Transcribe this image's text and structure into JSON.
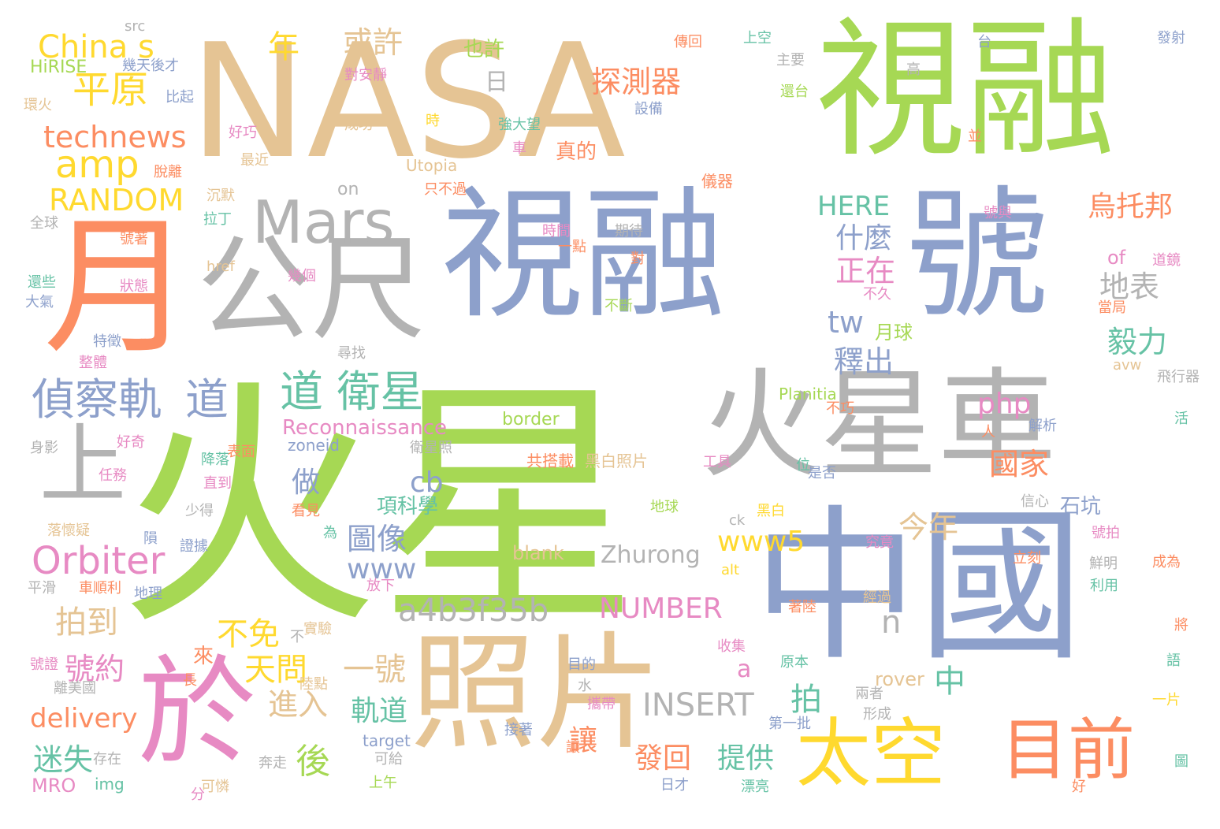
{
  "palette": {
    "green": "#a6d854",
    "blue": "#8da0cb",
    "gray": "#b3b3b3",
    "tan": "#e5c494",
    "orange": "#fc8d62",
    "pink": "#e78ac3",
    "yellow": "#ffd92f",
    "teal": "#66c2a5"
  },
  "words": [
    {
      "text": "火星",
      "color": "green"
    },
    {
      "text": "NASA",
      "color": "tan"
    },
    {
      "text": "視融",
      "color": "green"
    },
    {
      "text": "視融",
      "color": "blue"
    },
    {
      "text": "號",
      "color": "blue"
    },
    {
      "text": "中國",
      "color": "blue"
    },
    {
      "text": "火星車",
      "color": "gray"
    },
    {
      "text": "照片",
      "color": "tan"
    },
    {
      "text": "月",
      "color": "orange"
    },
    {
      "text": "公尺",
      "color": "gray"
    },
    {
      "text": "於",
      "color": "pink"
    },
    {
      "text": "Mars",
      "color": "gray"
    },
    {
      "text": "太空",
      "color": "yellow"
    },
    {
      "text": "目前",
      "color": "orange"
    },
    {
      "text": "上",
      "color": "gray"
    },
    {
      "text": "偵察軌",
      "color": "blue"
    },
    {
      "text": "道",
      "color": "blue"
    },
    {
      "text": "道 衛星",
      "color": "teal"
    },
    {
      "text": "Orbiter",
      "color": "pink"
    },
    {
      "text": "China s",
      "color": "yellow"
    },
    {
      "text": "平原",
      "color": "yellow"
    },
    {
      "text": "technews",
      "color": "orange"
    },
    {
      "text": "amp",
      "color": "yellow"
    },
    {
      "text": "RANDOM",
      "color": "yellow"
    },
    {
      "text": "年",
      "color": "yellow"
    },
    {
      "text": "或許",
      "color": "tan"
    },
    {
      "text": "也許",
      "color": "green"
    },
    {
      "text": "探測器",
      "color": "orange"
    },
    {
      "text": "日",
      "color": "gray"
    },
    {
      "text": "真的",
      "color": "orange"
    },
    {
      "text": "烏托邦",
      "color": "orange"
    },
    {
      "text": "HERE",
      "color": "teal"
    },
    {
      "text": "什麼",
      "color": "blue"
    },
    {
      "text": "正在",
      "color": "pink"
    },
    {
      "text": "地表",
      "color": "gray"
    },
    {
      "text": "毅力",
      "color": "teal"
    },
    {
      "text": "tw",
      "color": "blue"
    },
    {
      "text": "釋出",
      "color": "blue"
    },
    {
      "text": "月球",
      "color": "green"
    },
    {
      "text": "php",
      "color": "pink"
    },
    {
      "text": "國家",
      "color": "orange"
    },
    {
      "text": "Reconnaissance",
      "color": "pink"
    },
    {
      "text": "cb",
      "color": "blue"
    },
    {
      "text": "做",
      "color": "blue"
    },
    {
      "text": "項科學",
      "color": "teal"
    },
    {
      "text": "石坑",
      "color": "blue"
    },
    {
      "text": "圖像",
      "color": "blue"
    },
    {
      "text": "www5",
      "color": "yellow"
    },
    {
      "text": "今年",
      "color": "tan"
    },
    {
      "text": "www",
      "color": "blue"
    },
    {
      "text": "a4b3f35b",
      "color": "gray"
    },
    {
      "text": "拍到",
      "color": "tan"
    },
    {
      "text": "NUMBER",
      "color": "pink"
    },
    {
      "text": "n",
      "color": "gray"
    },
    {
      "text": "不免",
      "color": "yellow"
    },
    {
      "text": "天問",
      "color": "yellow"
    },
    {
      "text": "一號",
      "color": "tan"
    },
    {
      "text": "號約",
      "color": "pink"
    },
    {
      "text": "a",
      "color": "pink"
    },
    {
      "text": "中",
      "color": "teal"
    },
    {
      "text": "拍",
      "color": "teal"
    },
    {
      "text": "進入",
      "color": "tan"
    },
    {
      "text": "軌道",
      "color": "teal"
    },
    {
      "text": "INSERT",
      "color": "gray"
    },
    {
      "text": "delivery",
      "color": "orange"
    },
    {
      "text": "後",
      "color": "green"
    },
    {
      "text": "迷失",
      "color": "teal"
    },
    {
      "text": "發回",
      "color": "orange"
    },
    {
      "text": "提供",
      "color": "teal"
    },
    {
      "text": "讓",
      "color": "orange"
    },
    {
      "text": "rover",
      "color": "tan"
    },
    {
      "text": "Zhurong",
      "color": "gray"
    },
    {
      "text": "blank",
      "color": "tan"
    },
    {
      "text": "border",
      "color": "green"
    },
    {
      "text": "Planitia",
      "color": "green"
    },
    {
      "text": "Utopia",
      "color": "tan"
    },
    {
      "text": "HiRISE",
      "color": "green"
    },
    {
      "text": "src",
      "color": "gray"
    },
    {
      "text": "href",
      "color": "tan"
    },
    {
      "text": "of",
      "color": "pink"
    },
    {
      "text": "on",
      "color": "gray"
    },
    {
      "text": "zoneid",
      "color": "blue"
    },
    {
      "text": "target",
      "color": "blue"
    },
    {
      "text": "MRO",
      "color": "pink"
    },
    {
      "text": "img",
      "color": "teal"
    },
    {
      "text": "alt",
      "color": "yellow"
    },
    {
      "text": "avw",
      "color": "tan"
    },
    {
      "text": "ck",
      "color": "gray"
    },
    {
      "text": "黑白照片",
      "color": "tan"
    },
    {
      "text": "共搭載",
      "color": "orange"
    },
    {
      "text": "衛星照",
      "color": "gray"
    },
    {
      "text": "幾天後才",
      "color": "blue"
    },
    {
      "text": "比起",
      "color": "blue"
    },
    {
      "text": "環火",
      "color": "tan"
    },
    {
      "text": "對安靜",
      "color": "pink"
    },
    {
      "text": "成功",
      "color": "tan"
    },
    {
      "text": "強大望",
      "color": "teal"
    },
    {
      "text": "設備",
      "color": "blue"
    },
    {
      "text": "儀器",
      "color": "orange"
    },
    {
      "text": "只不過",
      "color": "orange"
    },
    {
      "text": "傳回",
      "color": "orange"
    },
    {
      "text": "上空",
      "color": "teal"
    },
    {
      "text": "主要",
      "color": "gray"
    },
    {
      "text": "還台",
      "color": "green"
    },
    {
      "text": "發射",
      "color": "blue"
    },
    {
      "text": "時間",
      "color": "pink"
    },
    {
      "text": "一點",
      "color": "orange"
    },
    {
      "text": "期待",
      "color": "gray"
    },
    {
      "text": "拉丁",
      "color": "teal"
    },
    {
      "text": "沉默",
      "color": "tan"
    },
    {
      "text": "號著",
      "color": "orange"
    },
    {
      "text": "全球",
      "color": "gray"
    },
    {
      "text": "狀態",
      "color": "pink"
    },
    {
      "text": "還些",
      "color": "teal"
    },
    {
      "text": "大氣",
      "color": "blue"
    },
    {
      "text": "特徵",
      "color": "blue"
    },
    {
      "text": "整體",
      "color": "pink"
    },
    {
      "text": "尋找",
      "color": "gray"
    },
    {
      "text": "幾個",
      "color": "pink"
    },
    {
      "text": "不斷",
      "color": "green"
    },
    {
      "text": "不久",
      "color": "pink"
    },
    {
      "text": "當局",
      "color": "orange"
    },
    {
      "text": "飛行器",
      "color": "gray"
    },
    {
      "text": "解析",
      "color": "blue"
    },
    {
      "text": "工具",
      "color": "pink"
    },
    {
      "text": "是否",
      "color": "blue"
    },
    {
      "text": "好奇",
      "color": "pink"
    },
    {
      "text": "表面",
      "color": "orange"
    },
    {
      "text": "身影",
      "color": "gray"
    },
    {
      "text": "降落",
      "color": "teal"
    },
    {
      "text": "任務",
      "color": "pink"
    },
    {
      "text": "直到",
      "color": "pink"
    },
    {
      "text": "少得",
      "color": "gray"
    },
    {
      "text": "地球",
      "color": "green"
    },
    {
      "text": "黑白",
      "color": "yellow"
    },
    {
      "text": "信心",
      "color": "gray"
    },
    {
      "text": "號拍",
      "color": "pink"
    },
    {
      "text": "究竟",
      "color": "pink"
    },
    {
      "text": "鮮明",
      "color": "gray"
    },
    {
      "text": "立刻",
      "color": "orange"
    },
    {
      "text": "成為",
      "color": "orange"
    },
    {
      "text": "利用",
      "color": "teal"
    },
    {
      "text": "經過",
      "color": "tan"
    },
    {
      "text": "著陸",
      "color": "orange"
    },
    {
      "text": "收集",
      "color": "pink"
    },
    {
      "text": "原本",
      "color": "teal"
    },
    {
      "text": "第一批",
      "color": "blue"
    },
    {
      "text": "兩者",
      "color": "gray"
    },
    {
      "text": "形成",
      "color": "gray"
    },
    {
      "text": "攜帶",
      "color": "pink"
    },
    {
      "text": "接著",
      "color": "blue"
    },
    {
      "text": "可給",
      "color": "gray"
    },
    {
      "text": "上午",
      "color": "green"
    },
    {
      "text": "奔走",
      "color": "gray"
    },
    {
      "text": "存在",
      "color": "gray"
    },
    {
      "text": "可憐",
      "color": "tan"
    },
    {
      "text": "漂亮",
      "color": "teal"
    },
    {
      "text": "日才",
      "color": "blue"
    },
    {
      "text": "地理",
      "color": "blue"
    },
    {
      "text": "平滑",
      "color": "gray"
    },
    {
      "text": "車順利",
      "color": "orange"
    },
    {
      "text": "證據",
      "color": "blue"
    },
    {
      "text": "落懷疑",
      "color": "tan"
    },
    {
      "text": "放下",
      "color": "pink"
    },
    {
      "text": "實驗",
      "color": "tan"
    },
    {
      "text": "號證",
      "color": "pink"
    },
    {
      "text": "陸點",
      "color": "tan"
    },
    {
      "text": "目的",
      "color": "blue"
    },
    {
      "text": "離美國",
      "color": "gray"
    },
    {
      "text": "好巧",
      "color": "pink"
    },
    {
      "text": "最近",
      "color": "tan"
    },
    {
      "text": "脫離",
      "color": "orange"
    },
    {
      "text": "看見",
      "color": "orange"
    },
    {
      "text": "為",
      "color": "teal"
    },
    {
      "text": "不",
      "color": "gray"
    },
    {
      "text": "來",
      "color": "orange"
    },
    {
      "text": "長",
      "color": "orange"
    },
    {
      "text": "水",
      "color": "gray"
    },
    {
      "text": "分",
      "color": "pink"
    },
    {
      "text": "好",
      "color": "orange"
    },
    {
      "text": "一片",
      "color": "yellow"
    },
    {
      "text": "圖",
      "color": "teal"
    },
    {
      "text": "將",
      "color": "orange"
    },
    {
      "text": "語",
      "color": "teal"
    },
    {
      "text": "人",
      "color": "orange"
    },
    {
      "text": "活",
      "color": "teal"
    },
    {
      "text": "位",
      "color": "teal"
    },
    {
      "text": "並",
      "color": "orange"
    },
    {
      "text": "台",
      "color": "blue"
    },
    {
      "text": "高",
      "color": "gray"
    },
    {
      "text": "時",
      "color": "yellow"
    },
    {
      "text": "車",
      "color": "pink"
    },
    {
      "text": "對",
      "color": "orange"
    },
    {
      "text": "號與",
      "color": "pink"
    },
    {
      "text": "道鏡",
      "color": "pink"
    },
    {
      "text": "不巧",
      "color": "orange"
    },
    {
      "text": "隕",
      "color": "blue"
    },
    {
      "text": "讓",
      "color": "orange"
    }
  ]
}
